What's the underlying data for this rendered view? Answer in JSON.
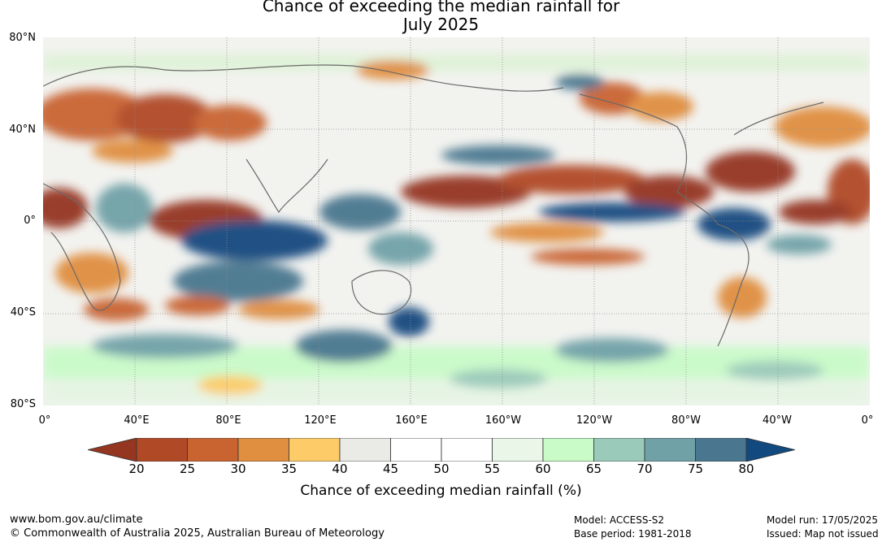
{
  "title": {
    "line1": "Chance of exceeding the median rainfall for",
    "line2": "July 2025"
  },
  "lat_labels": [
    "80°N",
    "40°N",
    "0°",
    "40°S",
    "80°S"
  ],
  "lon_labels": [
    "0°",
    "40°E",
    "80°E",
    "120°E",
    "160°E",
    "160°W",
    "120°W",
    "80°W",
    "40°W",
    "0°"
  ],
  "legend": {
    "title": "Chance of exceeding median rainfall (%)",
    "ticks": [
      "20",
      "25",
      "30",
      "35",
      "40",
      "45",
      "50",
      "55",
      "60",
      "65",
      "70",
      "75",
      "80"
    ],
    "colors": [
      "#953621",
      "#b04925",
      "#c96330",
      "#e08e40",
      "#fdcc68",
      "#eaeae7",
      "#ffffff",
      "#ffffff",
      "#eaf6e8",
      "#c9fbc9",
      "#9acab9",
      "#6fa1a7",
      "#4a778f",
      "#12497f"
    ]
  },
  "footer": {
    "website": "www.bom.gov.au/climate",
    "copyright": "© Commonwealth of Australia 2025, Australian Bureau of Meteorology",
    "model": "Model: ACCESS-S2",
    "base_period": "Base period: 1981-2018",
    "model_run": "Model run: 17/05/2025",
    "issued": "Issued: Map not issued"
  }
}
